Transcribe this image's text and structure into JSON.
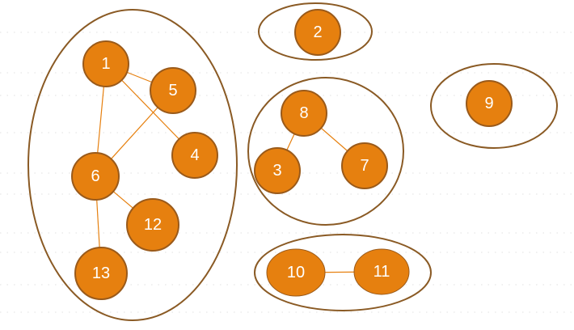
{
  "colors": {
    "node_fill": "#e6800f",
    "node_stroke": "#9a5a1a",
    "group_stroke": "#8a5a24",
    "edge": "#e6800f",
    "label": "#ffffff"
  },
  "nodes": [
    {
      "id": "n1",
      "label": "1"
    },
    {
      "id": "n5",
      "label": "5"
    },
    {
      "id": "n4",
      "label": "4"
    },
    {
      "id": "n6",
      "label": "6"
    },
    {
      "id": "n12",
      "label": "12"
    },
    {
      "id": "n13",
      "label": "13"
    },
    {
      "id": "n2",
      "label": "2"
    },
    {
      "id": "n8",
      "label": "8"
    },
    {
      "id": "n3",
      "label": "3"
    },
    {
      "id": "n7",
      "label": "7"
    },
    {
      "id": "n9",
      "label": "9"
    },
    {
      "id": "n10",
      "label": "10"
    },
    {
      "id": "n11",
      "label": "11"
    }
  ],
  "edges": [
    {
      "from": "1",
      "to": "5"
    },
    {
      "from": "1",
      "to": "4"
    },
    {
      "from": "1",
      "to": "6"
    },
    {
      "from": "5",
      "to": "6"
    },
    {
      "from": "6",
      "to": "12"
    },
    {
      "from": "6",
      "to": "13"
    },
    {
      "from": "8",
      "to": "3"
    },
    {
      "from": "8",
      "to": "7"
    },
    {
      "from": "10",
      "to": "11"
    }
  ],
  "groups": [
    {
      "members": [
        "1",
        "5",
        "4",
        "6",
        "12",
        "13"
      ]
    },
    {
      "members": [
        "2"
      ]
    },
    {
      "members": [
        "8",
        "3",
        "7"
      ]
    },
    {
      "members": [
        "9"
      ]
    },
    {
      "members": [
        "10",
        "11"
      ]
    }
  ]
}
